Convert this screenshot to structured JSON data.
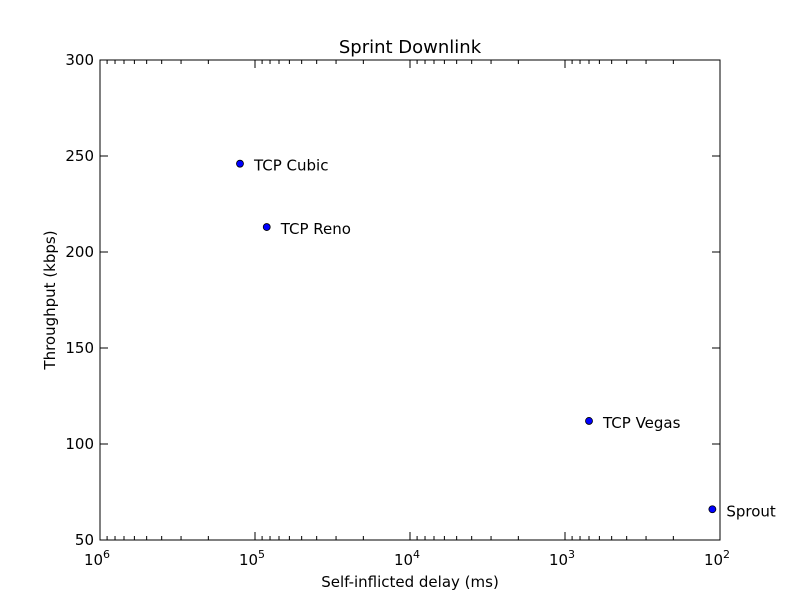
{
  "chart_data": {
    "type": "scatter",
    "title": "Sprint Downlink",
    "xlabel": "Self-inflicted delay (ms)",
    "ylabel": "Throughput (kbps)",
    "xscale": "log",
    "x_inverted": true,
    "xlim": [
      1000000,
      100
    ],
    "ylim": [
      50,
      300
    ],
    "x_tick_labels": [
      {
        "base": "10",
        "exp": "6",
        "value": 1000000
      },
      {
        "base": "10",
        "exp": "5",
        "value": 100000
      },
      {
        "base": "10",
        "exp": "4",
        "value": 10000
      },
      {
        "base": "10",
        "exp": "3",
        "value": 1000
      },
      {
        "base": "10",
        "exp": "2",
        "value": 100
      }
    ],
    "y_ticks": [
      50,
      100,
      150,
      200,
      250,
      300
    ],
    "points": [
      {
        "label": "TCP Cubic",
        "x": 125000,
        "y": 246
      },
      {
        "label": "TCP Reno",
        "x": 84000,
        "y": 213
      },
      {
        "label": "TCP Vegas",
        "x": 700,
        "y": 112
      },
      {
        "label": "Sprout",
        "x": 112,
        "y": 66
      }
    ],
    "marker_color": "#0000ff",
    "grid": false
  }
}
